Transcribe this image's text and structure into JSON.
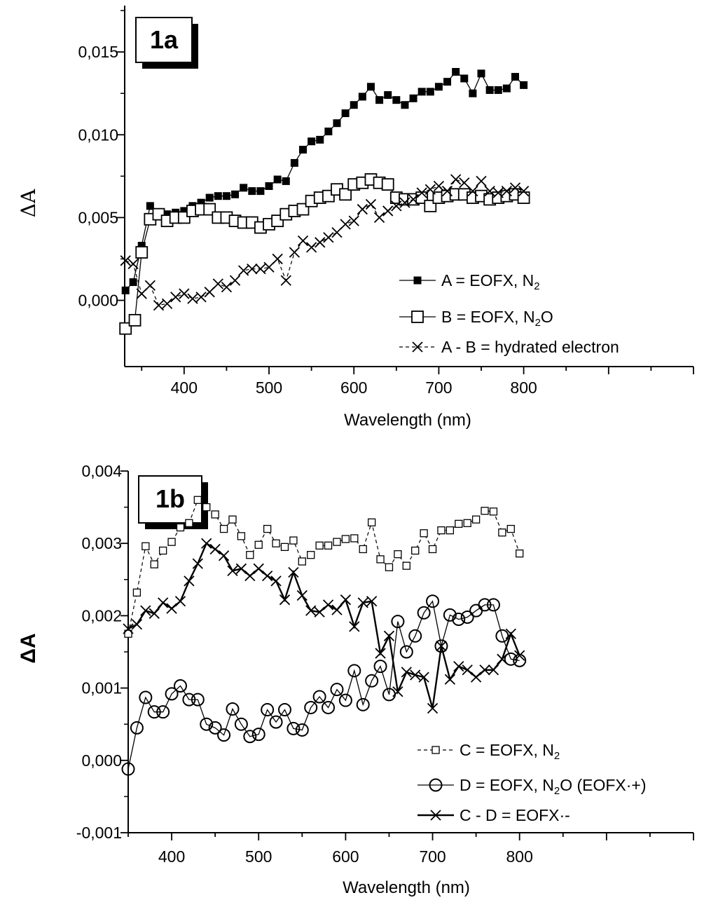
{
  "chart_data": [
    {
      "type": "line",
      "panel_label": "1a",
      "xlabel": "Wavelength (nm)",
      "ylabel": "ΔA",
      "xlim": [
        330,
        1000
      ],
      "ylim": [
        -0.004,
        0.0178
      ],
      "xticks": [
        400,
        500,
        600,
        700,
        800
      ],
      "xtick_labels": [
        "400",
        "500",
        "600",
        "700",
        "800"
      ],
      "yticks": [
        0,
        0.005,
        0.01,
        0.015
      ],
      "ytick_labels": [
        "0,000",
        "0,005",
        "0,010",
        "0,015"
      ],
      "legend_position": "bottom-right",
      "series": [
        {
          "name": "A = EOFX, N2",
          "legend": {
            "prefix": "A =  EOFX, N",
            "sub": "2",
            "suffix": ""
          },
          "marker": "filled-square",
          "line": "solid",
          "x": [
            331,
            340,
            350,
            360,
            370,
            380,
            390,
            400,
            410,
            420,
            430,
            440,
            450,
            460,
            470,
            480,
            490,
            500,
            510,
            520,
            530,
            540,
            550,
            560,
            570,
            580,
            590,
            600,
            610,
            620,
            630,
            640,
            650,
            660,
            670,
            680,
            690,
            700,
            710,
            720,
            730,
            740,
            750,
            760,
            770,
            780,
            790,
            800
          ],
          "y": [
            0.0006,
            0.0011,
            0.0033,
            0.0057,
            0.0051,
            0.0052,
            0.0053,
            0.0054,
            0.0057,
            0.0059,
            0.0062,
            0.0063,
            0.0063,
            0.0064,
            0.0068,
            0.0066,
            0.0066,
            0.0069,
            0.0073,
            0.0072,
            0.0083,
            0.0091,
            0.0096,
            0.0097,
            0.0102,
            0.0107,
            0.0113,
            0.0118,
            0.0123,
            0.0129,
            0.0121,
            0.0124,
            0.0121,
            0.0118,
            0.0122,
            0.0126,
            0.0126,
            0.0129,
            0.0132,
            0.0138,
            0.0134,
            0.0125,
            0.0137,
            0.0127,
            0.0127,
            0.0128,
            0.0135,
            0.013
          ]
        },
        {
          "name": "B = EOFX, N2O",
          "legend": {
            "prefix": "B = EOFX, N",
            "sub": "2",
            "suffix": "O"
          },
          "marker": "open-square",
          "line": "solid",
          "x": [
            331,
            342,
            350,
            360,
            370,
            380,
            390,
            400,
            410,
            420,
            430,
            440,
            450,
            460,
            470,
            480,
            490,
            500,
            510,
            520,
            530,
            540,
            550,
            560,
            570,
            580,
            590,
            600,
            610,
            620,
            630,
            640,
            650,
            660,
            670,
            680,
            690,
            700,
            710,
            720,
            730,
            740,
            750,
            760,
            770,
            780,
            790,
            800
          ],
          "y": [
            -0.0017,
            -0.0012,
            0.0029,
            0.0049,
            0.0052,
            0.0048,
            0.005,
            0.005,
            0.0054,
            0.0055,
            0.0055,
            0.005,
            0.005,
            0.0048,
            0.0047,
            0.0047,
            0.0044,
            0.0046,
            0.0048,
            0.0052,
            0.0054,
            0.0055,
            0.006,
            0.0062,
            0.0063,
            0.0067,
            0.0064,
            0.007,
            0.0071,
            0.0073,
            0.0071,
            0.007,
            0.0062,
            0.0061,
            0.0061,
            0.0062,
            0.0057,
            0.0062,
            0.0063,
            0.0064,
            0.0064,
            0.0062,
            0.0063,
            0.0061,
            0.0062,
            0.0063,
            0.0064,
            0.0062
          ]
        },
        {
          "name": "A - B = hydrated electron",
          "legend": {
            "prefix": "A - B = hydrated electron",
            "sub": "",
            "suffix": ""
          },
          "marker": "cross",
          "line": "dashed",
          "x": [
            331,
            340,
            350,
            360,
            370,
            380,
            390,
            400,
            410,
            420,
            430,
            440,
            450,
            460,
            470,
            480,
            490,
            500,
            510,
            520,
            530,
            540,
            550,
            560,
            570,
            580,
            590,
            600,
            610,
            620,
            630,
            640,
            650,
            660,
            670,
            680,
            690,
            700,
            710,
            720,
            730,
            740,
            750,
            760,
            770,
            780,
            790,
            800
          ],
          "y": [
            0.0024,
            0.0022,
            0.0004,
            0.0009,
            -0.0003,
            -0.0002,
            0.0002,
            0.0004,
            0.0001,
            0.0002,
            0.0005,
            0.001,
            0.0008,
            0.0012,
            0.0018,
            0.0019,
            0.0019,
            0.002,
            0.0025,
            0.0012,
            0.0029,
            0.0036,
            0.0032,
            0.0035,
            0.0038,
            0.0041,
            0.0046,
            0.0048,
            0.0055,
            0.0058,
            0.005,
            0.0054,
            0.0057,
            0.0059,
            0.0061,
            0.0065,
            0.0067,
            0.0069,
            0.0066,
            0.0073,
            0.0071,
            0.0066,
            0.0072,
            0.0066,
            0.0065,
            0.0066,
            0.0068,
            0.0066
          ]
        }
      ]
    },
    {
      "type": "line",
      "panel_label": "1b",
      "xlabel": "Wavelength (nm)",
      "ylabel": "ΔA",
      "xlim": [
        350,
        1000
      ],
      "ylim": [
        -0.001,
        0.004
      ],
      "xticks": [
        400,
        500,
        600,
        700,
        800
      ],
      "xtick_labels": [
        "400",
        "500",
        "600",
        "700",
        "800"
      ],
      "yticks": [
        -0.001,
        0,
        0.001,
        0.002,
        0.003,
        0.004
      ],
      "ytick_labels": [
        "-0,001",
        "0,000",
        "0,001",
        "0,002",
        "0,003",
        "0,004"
      ],
      "legend_position": "bottom-right",
      "series": [
        {
          "name": "C = EOFX, N2",
          "legend": {
            "prefix": "C =  EOFX, N",
            "sub": "2",
            "suffix": ""
          },
          "marker": "small-open-square",
          "line": "dashed",
          "x": [
            350,
            360,
            370,
            380,
            390,
            400,
            410,
            420,
            430,
            440,
            450,
            460,
            470,
            480,
            490,
            500,
            510,
            520,
            530,
            540,
            550,
            560,
            570,
            580,
            590,
            600,
            610,
            620,
            630,
            640,
            650,
            660,
            670,
            680,
            690,
            700,
            710,
            720,
            730,
            740,
            750,
            760,
            770,
            780,
            790,
            800
          ],
          "y": [
            0.00175,
            0.00232,
            0.00296,
            0.00271,
            0.0029,
            0.00302,
            0.00322,
            0.00328,
            0.0036,
            0.0035,
            0.0034,
            0.0032,
            0.00333,
            0.0031,
            0.00284,
            0.00298,
            0.0032,
            0.003,
            0.00295,
            0.00304,
            0.00275,
            0.00284,
            0.00297,
            0.00297,
            0.00302,
            0.00306,
            0.00307,
            0.00292,
            0.00329,
            0.00278,
            0.00267,
            0.00285,
            0.00269,
            0.0029,
            0.00314,
            0.00292,
            0.00318,
            0.00318,
            0.00327,
            0.00328,
            0.00333,
            0.00345,
            0.00344,
            0.00315,
            0.0032,
            0.00286
          ]
        },
        {
          "name": "D = EOFX, N2O (EOFX·+)",
          "legend": {
            "prefix": "D =  EOFX, N",
            "sub": "2",
            "suffix": "O (EOFX·+)"
          },
          "marker": "open-circle",
          "line": "solid",
          "x": [
            350,
            360,
            370,
            380,
            390,
            400,
            410,
            420,
            430,
            440,
            450,
            460,
            470,
            480,
            490,
            500,
            510,
            520,
            530,
            540,
            550,
            560,
            570,
            580,
            590,
            600,
            610,
            620,
            630,
            640,
            650,
            660,
            670,
            680,
            690,
            700,
            710,
            720,
            730,
            740,
            750,
            760,
            770,
            780,
            790,
            800
          ],
          "y": [
            -0.00012,
            0.00045,
            0.00087,
            0.00067,
            0.00067,
            0.00092,
            0.00103,
            0.00084,
            0.00084,
            0.0005,
            0.00045,
            0.00035,
            0.00071,
            0.0005,
            0.00033,
            0.00036,
            0.0007,
            0.00053,
            0.0007,
            0.00044,
            0.00042,
            0.00073,
            0.00088,
            0.00073,
            0.00098,
            0.00083,
            0.00124,
            0.00077,
            0.0011,
            0.0013,
            0.00091,
            0.00192,
            0.0015,
            0.00172,
            0.00204,
            0.0022,
            0.00158,
            0.00201,
            0.00195,
            0.00198,
            0.00207,
            0.00215,
            0.00215,
            0.00172,
            0.0014,
            0.00138
          ]
        },
        {
          "name": "C - D = EOFX·-",
          "legend": {
            "prefix": "C - D = EOFX·-",
            "sub": "",
            "suffix": ""
          },
          "marker": "cross",
          "line": "bold-solid",
          "x": [
            350,
            360,
            370,
            380,
            390,
            400,
            410,
            420,
            430,
            440,
            450,
            460,
            470,
            480,
            490,
            500,
            510,
            520,
            530,
            540,
            550,
            560,
            570,
            580,
            590,
            600,
            610,
            620,
            630,
            640,
            650,
            660,
            670,
            680,
            690,
            700,
            710,
            720,
            730,
            740,
            750,
            760,
            770,
            780,
            790,
            800
          ],
          "y": [
            0.00182,
            0.00188,
            0.00207,
            0.00203,
            0.00218,
            0.0021,
            0.0022,
            0.00248,
            0.00272,
            0.003,
            0.00292,
            0.00283,
            0.00262,
            0.00265,
            0.00255,
            0.00265,
            0.00255,
            0.00248,
            0.00222,
            0.0026,
            0.00228,
            0.00207,
            0.00205,
            0.00215,
            0.00208,
            0.00222,
            0.00185,
            0.00218,
            0.0022,
            0.00148,
            0.00172,
            0.00095,
            0.00122,
            0.00118,
            0.00115,
            0.00072,
            0.00158,
            0.00112,
            0.0013,
            0.00125,
            0.00115,
            0.00125,
            0.00125,
            0.0014,
            0.00175,
            0.00145
          ]
        }
      ]
    }
  ]
}
